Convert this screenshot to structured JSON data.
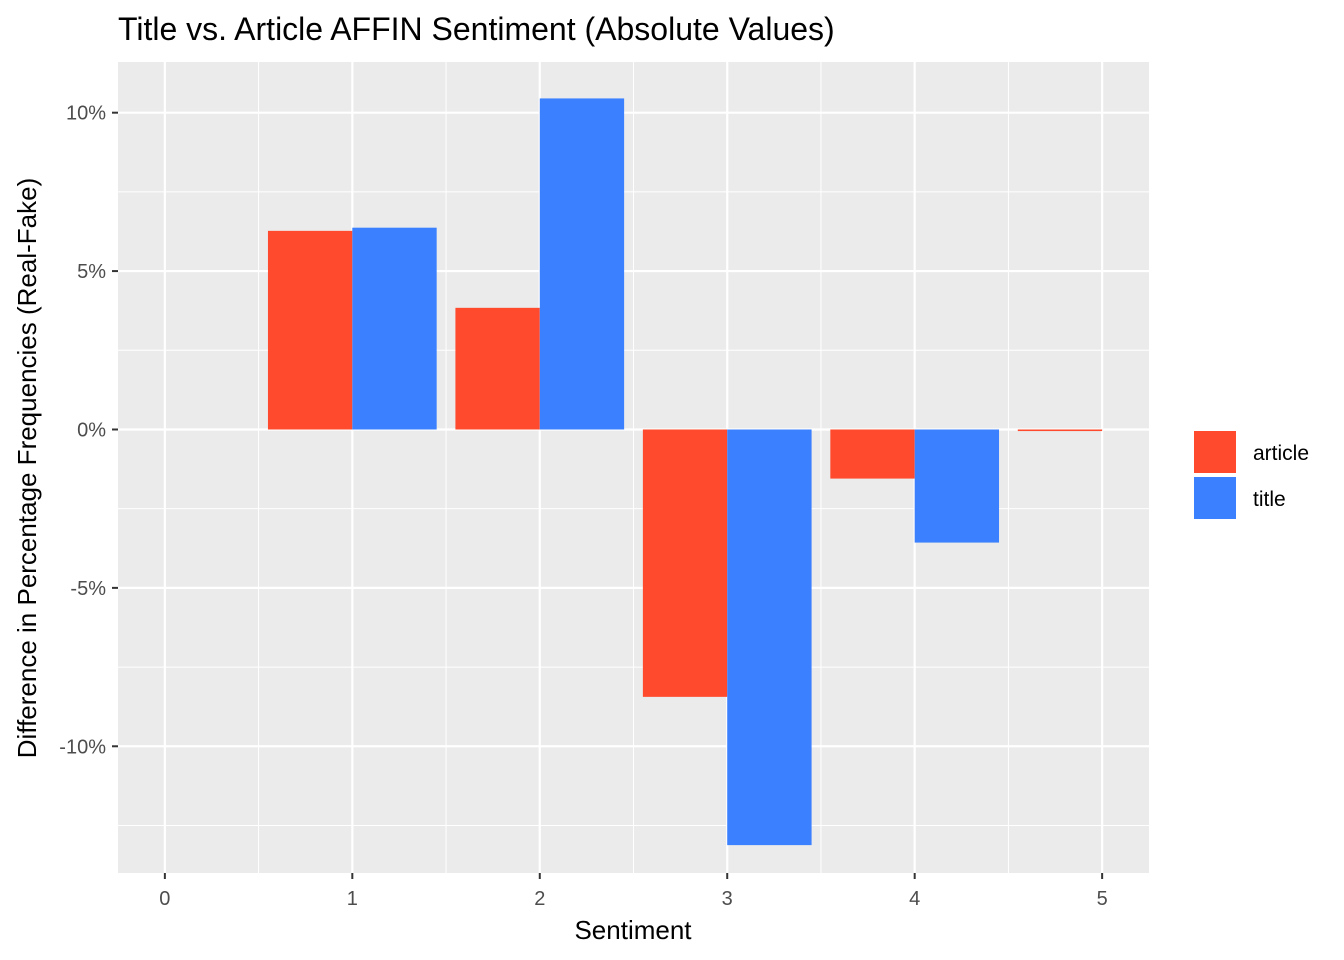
{
  "chart_data": {
    "type": "bar",
    "title": "Title vs. Article AFFIN Sentiment (Absolute Values)",
    "xlabel": "Sentiment",
    "ylabel": "Difference in Percentage Frequencies (Real-Fake)",
    "categories": [
      0,
      1,
      2,
      3,
      4,
      5
    ],
    "xlim": [
      -0.25,
      5.25
    ],
    "ylim": [
      -14.0,
      11.6
    ],
    "yticks": [
      -10,
      -5,
      0,
      5,
      10
    ],
    "ytick_labels": [
      "-10%",
      "-5%",
      "0%",
      "5%",
      "10%"
    ],
    "xtick_labels": [
      "0",
      "1",
      "2",
      "3",
      "4",
      "5"
    ],
    "grid": true,
    "legend_position": "right",
    "series": [
      {
        "name": "article",
        "color": "#FF4A2D",
        "values": [
          null,
          6.27,
          3.84,
          -8.44,
          -1.55,
          -0.05
        ]
      },
      {
        "name": "title",
        "color": "#3A80FF",
        "values": [
          null,
          6.37,
          10.45,
          -13.12,
          -3.57,
          null
        ]
      }
    ],
    "background_color": "#EBEBEB",
    "grid_color": "#FFFFFF"
  }
}
